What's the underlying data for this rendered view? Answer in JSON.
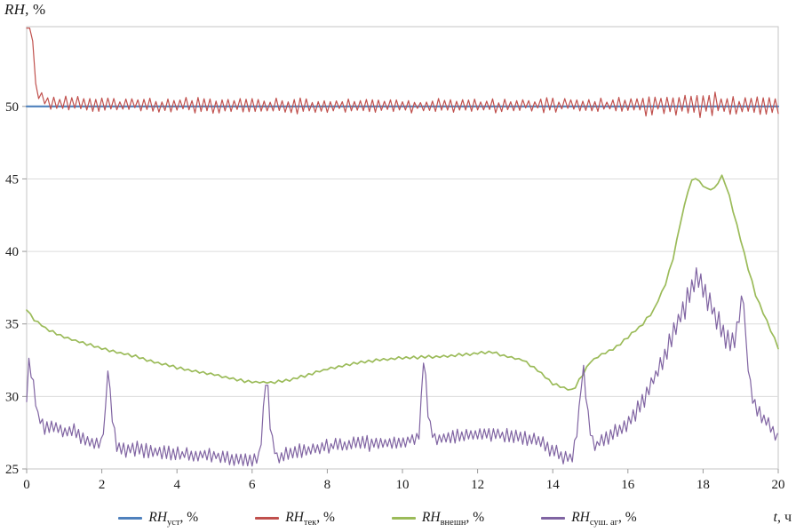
{
  "figure": {
    "ylabel": {
      "italic": "RH",
      "rest": ", %"
    },
    "xlabel": {
      "italic": "t",
      "rest": ", ч"
    }
  },
  "chart_data": {
    "type": "line",
    "title": "",
    "ylabel": "RH, %",
    "xlabel": "t, ч",
    "xlim": [
      0,
      20
    ],
    "ylim": [
      25,
      55.5
    ],
    "xticks": [
      0,
      2,
      4,
      6,
      8,
      10,
      12,
      14,
      16,
      18,
      20
    ],
    "yticks": [
      25,
      30,
      35,
      40,
      45,
      50
    ],
    "grid": "horizontal",
    "legend_position": "bottom",
    "legend": [
      {
        "main": "RH",
        "sub": "уст",
        "suffix": ", %"
      },
      {
        "main": "RH",
        "sub": "тек",
        "suffix": ", %"
      },
      {
        "main": "RH",
        "sub": "внешн",
        "suffix": ", %"
      },
      {
        "main": "RH",
        "sub": "суш. аг",
        "suffix": ", %"
      }
    ],
    "series": [
      {
        "name": "RH_уст, %",
        "color": "#4f81bd",
        "width": 2.2,
        "step": 20,
        "noise": [
          [
            0,
            0
          ],
          [
            20,
            0
          ]
        ],
        "anchors": [
          [
            0,
            50
          ],
          [
            20,
            50
          ]
        ]
      },
      {
        "name": "RH_тек, %",
        "color": "#c0504d",
        "width": 1.2,
        "step": 0.08,
        "noise": [
          [
            0,
            0
          ],
          [
            0.25,
            0
          ],
          [
            0.45,
            0.5
          ],
          [
            3,
            0.5
          ],
          [
            15.5,
            0.5
          ],
          [
            16.3,
            0.7
          ],
          [
            17,
            0.85
          ],
          [
            18.4,
            0.85
          ],
          [
            19,
            0.65
          ],
          [
            20,
            0.55
          ]
        ],
        "anchors": [
          [
            0,
            55.4
          ],
          [
            0.14,
            55.4
          ],
          [
            0.22,
            51.8
          ],
          [
            0.32,
            50.7
          ],
          [
            0.5,
            50.35
          ],
          [
            0.8,
            50.2
          ],
          [
            1.5,
            50.15
          ],
          [
            5,
            50.05
          ],
          [
            10,
            50.05
          ],
          [
            15,
            50.1
          ],
          [
            20,
            50.05
          ]
        ]
      },
      {
        "name": "RH_внешн, %",
        "color": "#9bbb59",
        "width": 1.7,
        "step": 0.1,
        "noise": [
          [
            0,
            0.1
          ],
          [
            20,
            0.1
          ]
        ],
        "anchors": [
          [
            0,
            36
          ],
          [
            0.2,
            35.3
          ],
          [
            0.5,
            34.7
          ],
          [
            1,
            34.1
          ],
          [
            1.5,
            33.7
          ],
          [
            2,
            33.3
          ],
          [
            2.5,
            33
          ],
          [
            3,
            32.7
          ],
          [
            3.5,
            32.3
          ],
          [
            4,
            32
          ],
          [
            4.5,
            31.7
          ],
          [
            5,
            31.5
          ],
          [
            5.5,
            31.2
          ],
          [
            6,
            31
          ],
          [
            6.5,
            30.95
          ],
          [
            7,
            31.15
          ],
          [
            7.5,
            31.5
          ],
          [
            8,
            31.9
          ],
          [
            8.5,
            32.15
          ],
          [
            9,
            32.4
          ],
          [
            9.5,
            32.55
          ],
          [
            10,
            32.65
          ],
          [
            10.5,
            32.7
          ],
          [
            11,
            32.75
          ],
          [
            11.5,
            32.85
          ],
          [
            12,
            33
          ],
          [
            12.4,
            33.05
          ],
          [
            12.8,
            32.75
          ],
          [
            13.2,
            32.5
          ],
          [
            13.6,
            31.8
          ],
          [
            14,
            30.9
          ],
          [
            14.3,
            30.6
          ],
          [
            14.55,
            30.4
          ],
          [
            14.75,
            31.3
          ],
          [
            15,
            32.4
          ],
          [
            15.3,
            32.9
          ],
          [
            15.7,
            33.4
          ],
          [
            16,
            34.1
          ],
          [
            16.4,
            35
          ],
          [
            16.7,
            36
          ],
          [
            17,
            37.8
          ],
          [
            17.2,
            39.5
          ],
          [
            17.4,
            42
          ],
          [
            17.6,
            44.2
          ],
          [
            17.75,
            45.2
          ],
          [
            17.9,
            44.8
          ],
          [
            18.1,
            44.3
          ],
          [
            18.3,
            44.3
          ],
          [
            18.5,
            45.2
          ],
          [
            18.65,
            44.3
          ],
          [
            18.8,
            42.8
          ],
          [
            19,
            40.8
          ],
          [
            19.2,
            38.8
          ],
          [
            19.4,
            37
          ],
          [
            19.6,
            35.8
          ],
          [
            19.8,
            34.6
          ],
          [
            20,
            33.4
          ]
        ]
      },
      {
        "name": "RH_суш. аг, %",
        "color": "#8064a2",
        "width": 1.2,
        "step": 0.06,
        "noise": [
          [
            0,
            0.45
          ],
          [
            2,
            0.5
          ],
          [
            14,
            0.5
          ],
          [
            16,
            0.55
          ],
          [
            16.8,
            0.7
          ],
          [
            17.5,
            0.85
          ],
          [
            18.6,
            0.8
          ],
          [
            19.1,
            0.5
          ],
          [
            19.4,
            0.55
          ],
          [
            20,
            0.4
          ]
        ],
        "anchors": [
          [
            0,
            30
          ],
          [
            0.05,
            32.4
          ],
          [
            0.15,
            31.2
          ],
          [
            0.3,
            28.6
          ],
          [
            0.5,
            27.8
          ],
          [
            0.8,
            28
          ],
          [
            1,
            27.5
          ],
          [
            1.2,
            27.7
          ],
          [
            1.5,
            27.1
          ],
          [
            1.8,
            26.8
          ],
          [
            2,
            26.9
          ],
          [
            2.1,
            29
          ],
          [
            2.17,
            32.6
          ],
          [
            2.25,
            29
          ],
          [
            2.4,
            26.6
          ],
          [
            2.7,
            26.3
          ],
          [
            3,
            26.4
          ],
          [
            3.3,
            26.1
          ],
          [
            3.6,
            26.2
          ],
          [
            4,
            26
          ],
          [
            4.4,
            25.9
          ],
          [
            4.8,
            26
          ],
          [
            5.2,
            25.8
          ],
          [
            5.6,
            25.7
          ],
          [
            6,
            25.6
          ],
          [
            6.2,
            25.7
          ],
          [
            6.3,
            29
          ],
          [
            6.38,
            31.7
          ],
          [
            6.5,
            27.5
          ],
          [
            6.65,
            25.8
          ],
          [
            7,
            26.1
          ],
          [
            7.4,
            26.3
          ],
          [
            7.8,
            26.5
          ],
          [
            8.2,
            26.6
          ],
          [
            8.6,
            26.7
          ],
          [
            9,
            26.75
          ],
          [
            9.4,
            26.8
          ],
          [
            9.8,
            26.85
          ],
          [
            10.2,
            27
          ],
          [
            10.45,
            27.3
          ],
          [
            10.57,
            33.1
          ],
          [
            10.7,
            28.2
          ],
          [
            10.85,
            27.1
          ],
          [
            11.2,
            27.2
          ],
          [
            11.6,
            27.35
          ],
          [
            12,
            27.4
          ],
          [
            12.4,
            27.35
          ],
          [
            12.8,
            27.25
          ],
          [
            13.2,
            27.15
          ],
          [
            13.6,
            26.9
          ],
          [
            14,
            26.3
          ],
          [
            14.3,
            25.7
          ],
          [
            14.55,
            25.9
          ],
          [
            14.7,
            29
          ],
          [
            14.8,
            32.3
          ],
          [
            14.95,
            28.5
          ],
          [
            15.1,
            26.5
          ],
          [
            15.4,
            27.1
          ],
          [
            15.7,
            27.6
          ],
          [
            16,
            28.2
          ],
          [
            16.3,
            29.2
          ],
          [
            16.6,
            30.7
          ],
          [
            16.9,
            32.4
          ],
          [
            17.1,
            33.7
          ],
          [
            17.3,
            35
          ],
          [
            17.5,
            36.1
          ],
          [
            17.65,
            37.2
          ],
          [
            17.8,
            38.2
          ],
          [
            17.95,
            37.6
          ],
          [
            18.1,
            36.8
          ],
          [
            18.3,
            35.7
          ],
          [
            18.5,
            34.4
          ],
          [
            18.7,
            33.8
          ],
          [
            18.85,
            33.9
          ],
          [
            19,
            36
          ],
          [
            19.07,
            37.4
          ],
          [
            19.15,
            33
          ],
          [
            19.3,
            29.9
          ],
          [
            19.5,
            28.8
          ],
          [
            19.7,
            28.3
          ],
          [
            19.9,
            27.4
          ],
          [
            20,
            27
          ]
        ]
      }
    ]
  }
}
